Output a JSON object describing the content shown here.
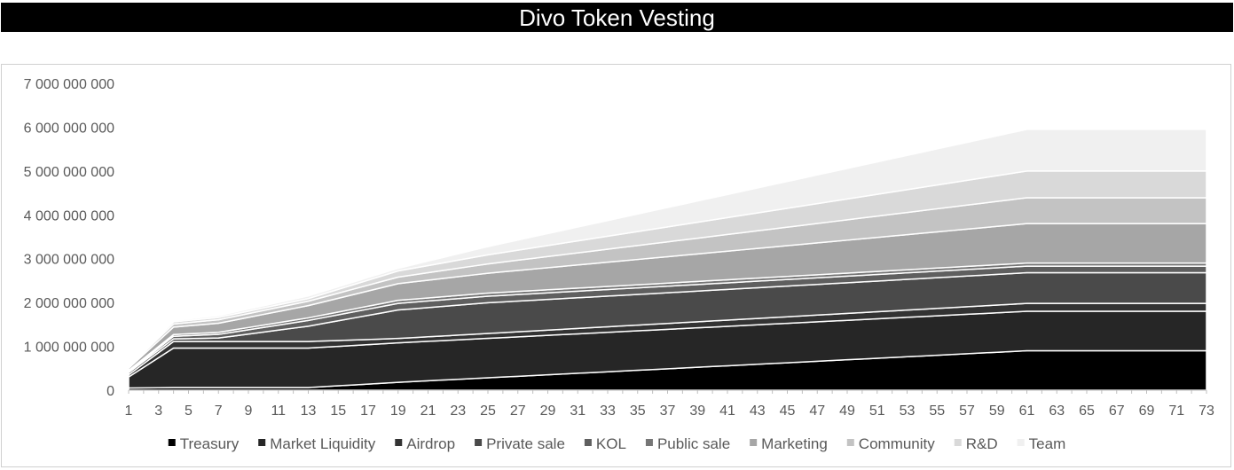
{
  "title": "Divo Token Vesting",
  "chart_data": {
    "type": "area",
    "stacked": true,
    "title": "Divo Token Vesting",
    "xlabel": "",
    "ylabel": "",
    "ylim": [
      0,
      7000000000
    ],
    "yticks": [
      0,
      1000000000,
      2000000000,
      3000000000,
      4000000000,
      5000000000,
      6000000000,
      7000000000
    ],
    "ytick_labels": [
      "0",
      "1 000 000 000",
      "2 000 000 000",
      "3 000 000 000",
      "4 000 000 000",
      "5 000 000 000",
      "6 000 000 000",
      "7 000 000 000"
    ],
    "xlim": [
      1,
      73
    ],
    "xticks": [
      1,
      3,
      5,
      7,
      9,
      11,
      13,
      15,
      17,
      19,
      21,
      23,
      25,
      27,
      29,
      31,
      33,
      35,
      37,
      39,
      41,
      43,
      45,
      47,
      49,
      51,
      53,
      55,
      57,
      59,
      61,
      63,
      65,
      67,
      69,
      71,
      73
    ],
    "grid": false,
    "legend_position": "bottom",
    "series": [
      {
        "name": "Treasury",
        "color": "#000000",
        "points": [
          [
            1,
            50000000
          ],
          [
            4,
            60000000
          ],
          [
            13,
            60000000
          ],
          [
            19,
            180000000
          ],
          [
            61,
            900000000
          ],
          [
            73,
            900000000
          ]
        ]
      },
      {
        "name": "Market Liquidity",
        "color": "#262626",
        "points": [
          [
            1,
            250000000
          ],
          [
            4,
            900000000
          ],
          [
            73,
            900000000
          ]
        ]
      },
      {
        "name": "Airdrop",
        "color": "#333333",
        "points": [
          [
            1,
            50000000
          ],
          [
            4,
            150000000
          ],
          [
            13,
            150000000
          ],
          [
            19,
            100000000
          ],
          [
            61,
            180000000
          ],
          [
            73,
            180000000
          ]
        ]
      },
      {
        "name": "Private sale",
        "color": "#4a4a4a",
        "points": [
          [
            1,
            50000000
          ],
          [
            4,
            60000000
          ],
          [
            7,
            80000000
          ],
          [
            13,
            350000000
          ],
          [
            19,
            650000000
          ],
          [
            25,
            700000000
          ],
          [
            61,
            700000000
          ],
          [
            73,
            700000000
          ]
        ]
      },
      {
        "name": "KOL",
        "color": "#5f5f5f",
        "points": [
          [
            1,
            20000000
          ],
          [
            4,
            60000000
          ],
          [
            13,
            130000000
          ],
          [
            19,
            150000000
          ],
          [
            61,
            150000000
          ],
          [
            73,
            150000000
          ]
        ]
      },
      {
        "name": "Public sale",
        "color": "#767676",
        "points": [
          [
            1,
            30000000
          ],
          [
            4,
            40000000
          ],
          [
            13,
            60000000
          ],
          [
            19,
            70000000
          ],
          [
            61,
            70000000
          ],
          [
            73,
            70000000
          ]
        ]
      },
      {
        "name": "Marketing",
        "color": "#a6a6a6",
        "points": [
          [
            1,
            50000000
          ],
          [
            4,
            170000000
          ],
          [
            13,
            280000000
          ],
          [
            19,
            380000000
          ],
          [
            61,
            900000000
          ],
          [
            73,
            900000000
          ]
        ]
      },
      {
        "name": "Community",
        "color": "#c3c3c3",
        "points": [
          [
            1,
            30000000
          ],
          [
            4,
            70000000
          ],
          [
            13,
            100000000
          ],
          [
            19,
            150000000
          ],
          [
            61,
            590000000
          ],
          [
            73,
            590000000
          ]
        ]
      },
      {
        "name": "R&D",
        "color": "#d9d9d9",
        "points": [
          [
            1,
            20000000
          ],
          [
            4,
            50000000
          ],
          [
            13,
            60000000
          ],
          [
            19,
            140000000
          ],
          [
            61,
            610000000
          ],
          [
            73,
            610000000
          ]
        ]
      },
      {
        "name": "Team",
        "color": "#f0f0f0",
        "points": [
          [
            1,
            10000000
          ],
          [
            4,
            30000000
          ],
          [
            13,
            60000000
          ],
          [
            19,
            60000000
          ],
          [
            61,
            950000000
          ],
          [
            73,
            950000000
          ]
        ]
      }
    ]
  }
}
